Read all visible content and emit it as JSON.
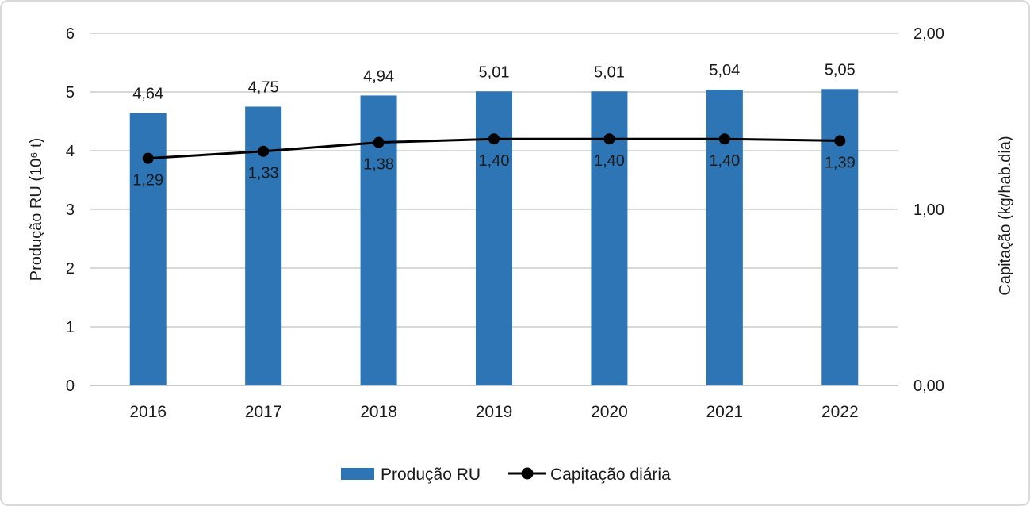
{
  "chart_data": {
    "type": "combo",
    "title": "",
    "categories": [
      "2016",
      "2017",
      "2018",
      "2019",
      "2020",
      "2021",
      "2022"
    ],
    "series": [
      {
        "name": "Produção RU",
        "type": "bar",
        "axis": "left",
        "color": "#2E75B6",
        "values": [
          4.64,
          4.75,
          4.94,
          5.01,
          5.01,
          5.04,
          5.05
        ],
        "labels": [
          "4,64",
          "4,75",
          "4,94",
          "5,01",
          "5,01",
          "5,04",
          "5,05"
        ]
      },
      {
        "name": "Capitação diária",
        "type": "line",
        "axis": "right",
        "color": "#000000",
        "values": [
          1.29,
          1.33,
          1.38,
          1.4,
          1.4,
          1.4,
          1.39
        ],
        "labels": [
          "1,29",
          "1,33",
          "1,38",
          "1,40",
          "1,40",
          "1,40",
          "1,39"
        ]
      }
    ],
    "ylabel_left": "Produção RU (10⁶ t)",
    "ylabel_right": "Capitação (kg/hab.dia)",
    "left_axis": {
      "min": 0,
      "max": 6,
      "ticks": [
        "0",
        "1",
        "2",
        "3",
        "4",
        "5",
        "6"
      ]
    },
    "right_axis": {
      "min": 0,
      "max": 2,
      "ticks": [
        "0,00",
        "1,00",
        "2,00"
      ]
    },
    "grid": true,
    "gridline_color": "#d9d9d9",
    "axis_line_color": "#c9c9c9",
    "legend_position": "bottom"
  }
}
